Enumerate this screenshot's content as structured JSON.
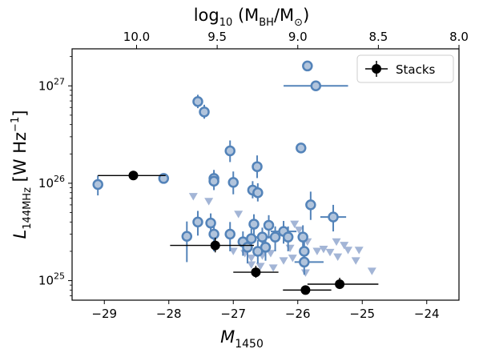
{
  "chart_data": {
    "type": "scatter",
    "bottom_axis": {
      "xlabel": "M",
      "xlabel_sub": "1450",
      "xlim": [
        -29.5,
        -23.5
      ],
      "ticks": [
        -29,
        -28,
        -27,
        -26,
        -25,
        -24
      ],
      "tick_labels": [
        "−29",
        "−28",
        "−27",
        "−26",
        "−25",
        "−24"
      ]
    },
    "top_axis": {
      "label_prefix": "log",
      "label_log_sub": "10",
      "label_paren_open": " (M",
      "label_bh_sub": "BH",
      "label_slash": "/M",
      "label_sun_sub": "⊙",
      "label_paren_close": ")",
      "ticks": [
        10.0,
        9.5,
        9.0,
        8.5,
        8.0
      ],
      "tick_labels": [
        "10.0",
        "9.5",
        "9.0",
        "8.5",
        "8.0"
      ],
      "tick_positions_m1450": [
        -28.5,
        -27.25,
        -26,
        -24.75,
        -23.5
      ]
    },
    "y_axis": {
      "ylabel_italic": "L",
      "ylabel_sub": "144MHz",
      "ylabel_units": " [W Hz",
      "ylabel_exp": "−1",
      "ylabel_close": "]",
      "scale": "log",
      "ylim": [
        6.3e+24,
        2.4e+27
      ],
      "ticks": [
        1e+25,
        1e+26,
        1e+27
      ],
      "tick_base": "10",
      "tick_exps": [
        "25",
        "26",
        "27"
      ]
    },
    "legend": {
      "position": "top-right",
      "label": "Stacks"
    },
    "colors": {
      "detection_edge": "#5383b9",
      "detection_fill": "#b1c4dc",
      "upper_limit": "#a3b5d6",
      "stack": "#000000"
    },
    "series": [
      {
        "name": "Stacks",
        "points": [
          {
            "x": -28.55,
            "y": 1.2e+26,
            "xerr": [
              0.55,
              0.5
            ],
            "yerr": [
              0,
              0
            ]
          },
          {
            "x": -27.28,
            "y": 2.3e+25,
            "xerr": [
              0.7,
              0.6
            ],
            "yerr": [
              3.5e+24,
              4.5e+24
            ]
          },
          {
            "x": -26.65,
            "y": 1.22e+25,
            "xerr": [
              0.35,
              0.35
            ],
            "yerr": [
              1.5e+24,
              2e+24
            ]
          },
          {
            "x": -25.88,
            "y": 8e+24,
            "xerr": [
              0.35,
              0.4
            ],
            "yerr": [
              0,
              0
            ]
          },
          {
            "x": -25.35,
            "y": 9.2e+24,
            "xerr": [
              0.5,
              0.6
            ],
            "yerr": [
              1e+24,
              1.5e+24
            ]
          }
        ]
      },
      {
        "points": [
          {
            "x": -29.1,
            "y": 9.7e+25,
            "xerr": [
              0,
              0
            ],
            "yerr": [
              2.2e+25,
              2.3e+25
            ]
          },
          {
            "x": -28.08,
            "y": 1.12e+26,
            "xerr": [
              0,
              0
            ],
            "yerr": [
              0,
              0
            ]
          },
          {
            "x": -27.55,
            "y": 6.9e+26,
            "xerr": [
              0,
              0
            ],
            "yerr": [
              1e+26,
              1.2e+26
            ]
          },
          {
            "x": -27.45,
            "y": 5.4e+26,
            "xerr": [
              0,
              0
            ],
            "yerr": [
              8e+25,
              1e+26
            ]
          },
          {
            "x": -27.3,
            "y": 1.12e+26,
            "xerr": [
              0,
              0
            ],
            "yerr": [
              2e+25,
              2.5e+25
            ]
          },
          {
            "x": -27.3,
            "y": 1.05e+26,
            "xerr": [
              0,
              0
            ],
            "yerr": [
              2e+25,
              2.5e+25
            ]
          },
          {
            "x": -27.05,
            "y": 2.15e+26,
            "xerr": [
              0,
              0
            ],
            "yerr": [
              5e+25,
              6e+25
            ]
          },
          {
            "x": -27.0,
            "y": 1.02e+26,
            "xerr": [
              0,
              0
            ],
            "yerr": [
              2.5e+25,
              3e+25
            ]
          },
          {
            "x": -26.63,
            "y": 1.48e+26,
            "xerr": [
              0,
              0
            ],
            "yerr": [
              3.5e+25,
              4.5e+25
            ]
          },
          {
            "x": -26.7,
            "y": 8.5e+25,
            "xerr": [
              0,
              0
            ],
            "yerr": [
              1.5e+25,
              2e+25
            ]
          },
          {
            "x": -26.62,
            "y": 8e+25,
            "xerr": [
              0,
              0
            ],
            "yerr": [
              1.5e+25,
              2e+25
            ]
          },
          {
            "x": -27.72,
            "y": 2.85e+25,
            "xerr": [
              0,
              0
            ],
            "yerr": [
              1.3e+25,
              1.2e+25
            ]
          },
          {
            "x": -27.55,
            "y": 4e+25,
            "xerr": [
              0,
              0
            ],
            "yerr": [
              1.1e+25,
              1.2e+25
            ]
          },
          {
            "x": -27.35,
            "y": 3.9e+25,
            "xerr": [
              0,
              0
            ],
            "yerr": [
              1.1e+25,
              1e+25
            ]
          },
          {
            "x": -27.3,
            "y": 3e+25,
            "xerr": [
              0,
              0
            ],
            "yerr": [
              1e+25,
              1.1e+25
            ]
          },
          {
            "x": -27.05,
            "y": 3e+25,
            "xerr": [
              0,
              0
            ],
            "yerr": [
              1e+25,
              1e+25
            ]
          },
          {
            "x": -26.85,
            "y": 2.5e+25,
            "xerr": [
              0,
              0
            ],
            "yerr": [
              7e+24,
              7e+24
            ]
          },
          {
            "x": -26.78,
            "y": 2.2e+25,
            "xerr": [
              0,
              0
            ],
            "yerr": [
              7e+24,
              7e+24
            ]
          },
          {
            "x": -26.72,
            "y": 2.7e+25,
            "xerr": [
              0,
              0
            ],
            "yerr": [
              6e+24,
              7e+24
            ]
          },
          {
            "x": -26.68,
            "y": 3.8e+25,
            "xerr": [
              0,
              0
            ],
            "yerr": [
              1e+25,
              1e+25
            ]
          },
          {
            "x": -26.62,
            "y": 2e+25,
            "xerr": [
              0,
              0
            ],
            "yerr": [
              5e+24,
              6e+24
            ]
          },
          {
            "x": -26.55,
            "y": 2.8e+25,
            "xerr": [
              0.2,
              0.2
            ],
            "yerr": [
              7e+24,
              7e+24
            ]
          },
          {
            "x": -26.5,
            "y": 2.2e+25,
            "xerr": [
              0,
              0
            ],
            "yerr": [
              6e+24,
              7e+24
            ]
          },
          {
            "x": -26.45,
            "y": 3.7e+25,
            "xerr": [
              0,
              0
            ],
            "yerr": [
              1e+25,
              1e+25
            ]
          },
          {
            "x": -26.35,
            "y": 2.8e+25,
            "xerr": [
              0,
              0
            ],
            "yerr": [
              8e+24,
              8e+24
            ]
          },
          {
            "x": -26.22,
            "y": 3.2e+25,
            "xerr": [
              0.2,
              0.2
            ],
            "yerr": [
              8e+24,
              9e+24
            ]
          },
          {
            "x": -26.15,
            "y": 2.8e+25,
            "xerr": [
              0,
              0
            ],
            "yerr": [
              8e+24,
              8e+24
            ]
          },
          {
            "x": -25.95,
            "y": 2.3e+26,
            "xerr": [
              0,
              0
            ],
            "yerr": [
              0,
              0
            ]
          },
          {
            "x": -25.92,
            "y": 2.8e+25,
            "xerr": [
              0,
              0
            ],
            "yerr": [
              8e+24,
              9e+24
            ]
          },
          {
            "x": -25.9,
            "y": 1.55e+25,
            "xerr": [
              0.15,
              0.3
            ],
            "yerr": [
              4e+24,
              5e+24
            ]
          },
          {
            "x": -25.9,
            "y": 2e+25,
            "xerr": [
              0,
              0
            ],
            "yerr": [
              5e+24,
              5e+24
            ]
          },
          {
            "x": -25.8,
            "y": 6e+25,
            "xerr": [
              0,
              0
            ],
            "yerr": [
              1.8e+25,
              2.2e+25
            ]
          },
          {
            "x": -25.85,
            "y": 1.6e+27,
            "xerr": [
              0,
              0
            ],
            "yerr": [
              0,
              0
            ]
          },
          {
            "x": -25.72,
            "y": 1e+27,
            "xerr": [
              0.5,
              0.5
            ],
            "yerr": [
              0,
              0
            ]
          },
          {
            "x": -25.45,
            "y": 4.5e+25,
            "xerr": [
              0.2,
              0.2
            ],
            "yerr": [
              1.3e+25,
              1.5e+25
            ]
          }
        ]
      },
      {
        "kind": "upper_limit",
        "points": [
          {
            "x": -27.62,
            "y": 7.3e+25
          },
          {
            "x": -27.38,
            "y": 6.5e+25
          },
          {
            "x": -26.92,
            "y": 4.8e+25
          },
          {
            "x": -27.0,
            "y": 2e+25
          },
          {
            "x": -26.82,
            "y": 1.9e+25
          },
          {
            "x": -26.72,
            "y": 1.7e+25
          },
          {
            "x": -26.55,
            "y": 1.8e+25
          },
          {
            "x": -26.42,
            "y": 1.9e+25
          },
          {
            "x": -26.72,
            "y": 1.45e+25
          },
          {
            "x": -26.58,
            "y": 1.4e+25
          },
          {
            "x": -26.38,
            "y": 1.35e+25
          },
          {
            "x": -26.22,
            "y": 1.6e+25
          },
          {
            "x": -26.08,
            "y": 1.7e+25
          },
          {
            "x": -26.12,
            "y": 2.15e+25
          },
          {
            "x": -25.85,
            "y": 2.5e+25
          },
          {
            "x": -25.7,
            "y": 2e+25
          },
          {
            "x": -25.6,
            "y": 2.1e+25
          },
          {
            "x": -25.5,
            "y": 1.95e+25
          },
          {
            "x": -25.38,
            "y": 1.75e+25
          },
          {
            "x": -25.4,
            "y": 2.5e+25
          },
          {
            "x": -25.28,
            "y": 2.3e+25
          },
          {
            "x": -25.22,
            "y": 2.05e+25
          },
          {
            "x": -25.1,
            "y": 1.6e+25
          },
          {
            "x": -25.05,
            "y": 2.05e+25
          },
          {
            "x": -24.85,
            "y": 1.25e+25
          },
          {
            "x": -25.98,
            "y": 3.3e+25
          },
          {
            "x": -25.88,
            "y": 1.2e+25
          },
          {
            "x": -26.05,
            "y": 3.8e+25
          }
        ]
      }
    ]
  }
}
